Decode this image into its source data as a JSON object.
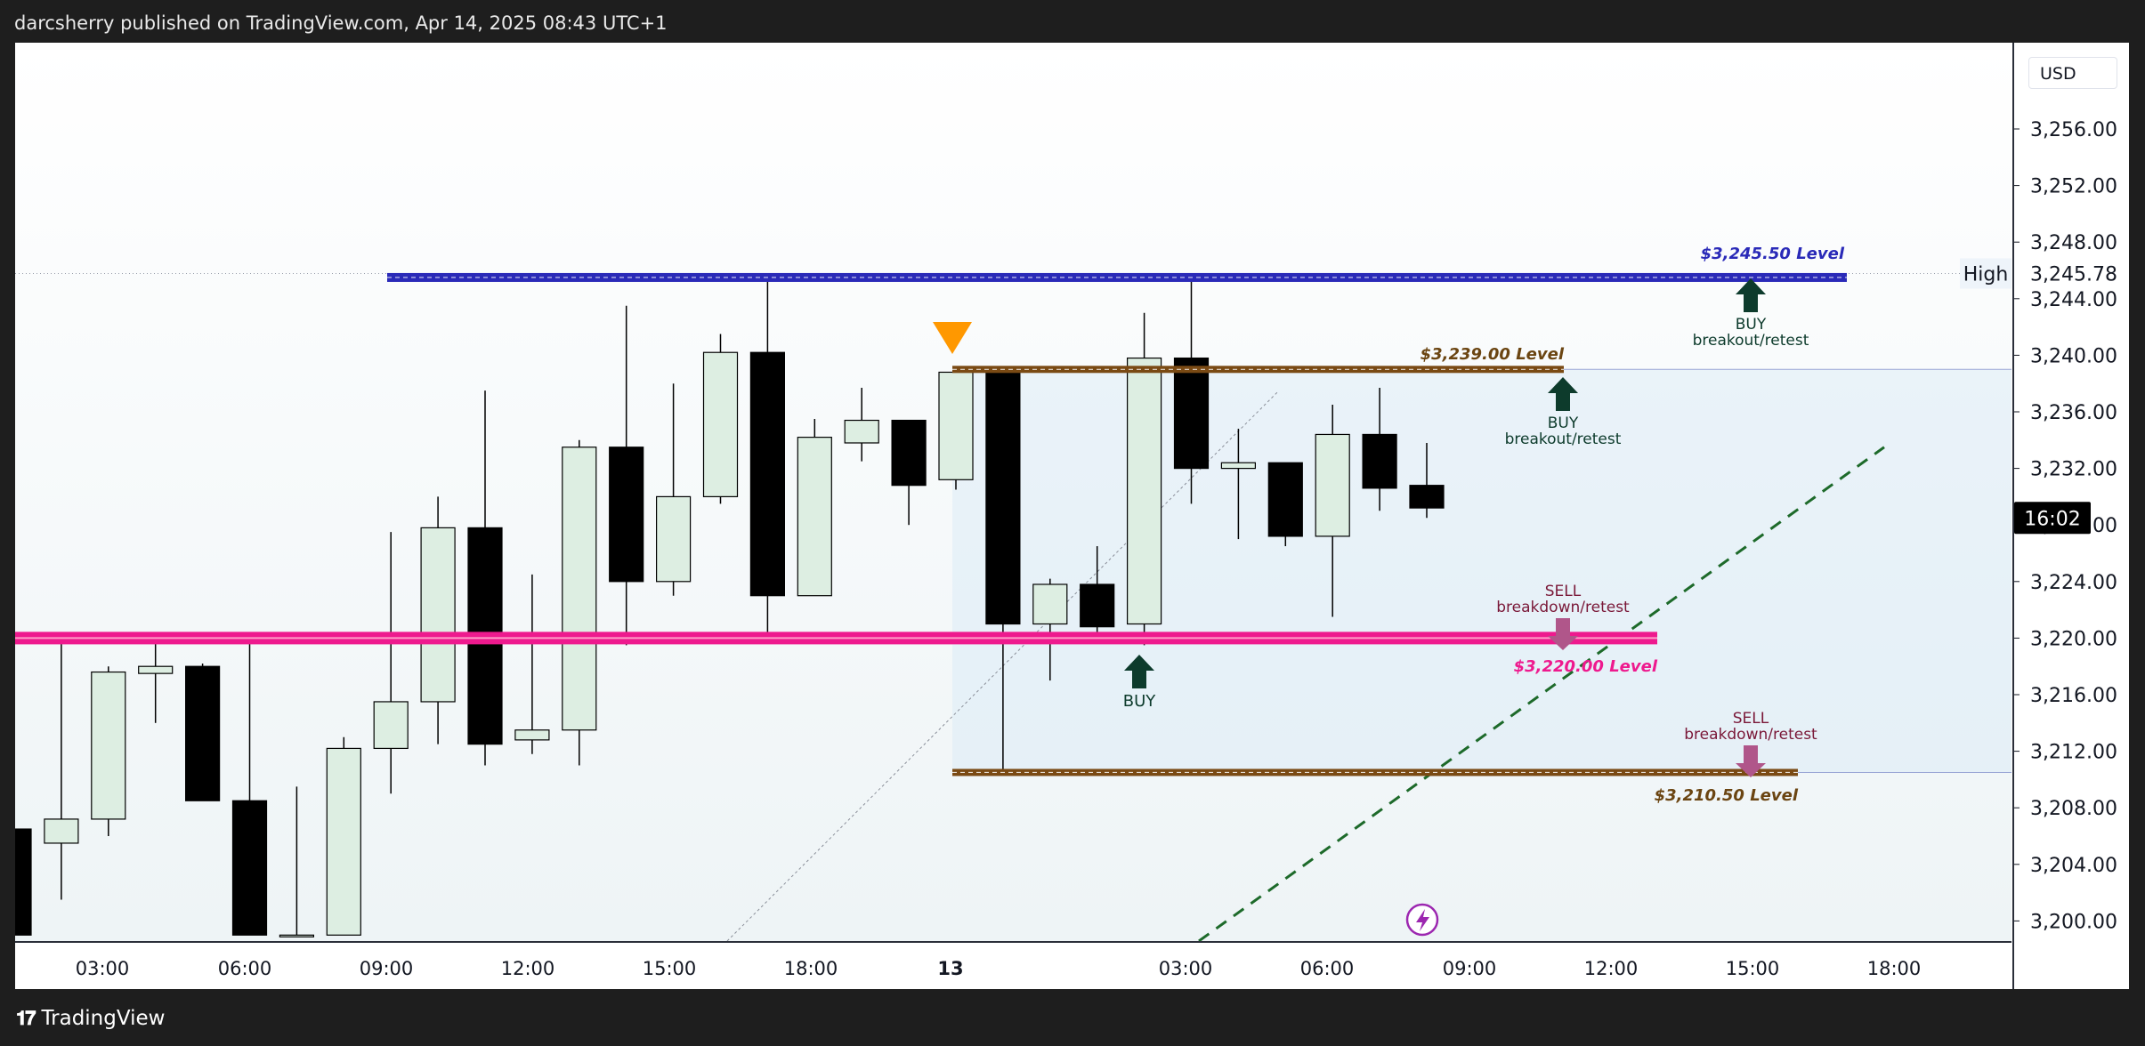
{
  "header": {
    "published": "darcsherry published on TradingView.com, Apr 14, 2025 08:43 UTC+1"
  },
  "footer": {
    "brand": "TradingView"
  },
  "axis": {
    "currency": "USD",
    "price_ticks": [
      "3,256.00",
      "3,252.00",
      "3,248.00",
      "3,244.00",
      "3,240.00",
      "3,236.00",
      "3,232.00",
      "3,228.00",
      "3,224.00",
      "3,220.00",
      "3,216.00",
      "3,212.00",
      "3,208.00",
      "3,204.00",
      "3,200.00"
    ],
    "high_label": "High",
    "high_value": "3,245.78",
    "countdown": "16:02",
    "time_ticks": [
      "03:00",
      "06:00",
      "09:00",
      "12:00",
      "15:00",
      "18:00",
      "13",
      "03:00",
      "06:00",
      "09:00",
      "12:00",
      "15:00",
      "18:00"
    ]
  },
  "annotations": {
    "level_3245": "$3,245.50 Level",
    "level_3239": "$3,239.00 Level",
    "level_3220": "$3,220.00 Level",
    "level_3210": "$3,210.50 Level",
    "buy": "BUY",
    "sell": "SELL",
    "breakout_retest": "breakout/retest",
    "breakdown_retest": "breakdown/retest"
  },
  "colors": {
    "up_body": "#ddeee2",
    "down_body": "#000000",
    "level_blue": "#2a2ab8",
    "level_pink": "#ee1a8e",
    "level_brown": "#7a4a14",
    "buy_arrow": "#0d3b2c",
    "sell_arrow": "#b0568a",
    "trend_green": "#1d6a2a",
    "triangle": "#ff9800"
  },
  "chart_data": {
    "type": "candlestick",
    "title": "",
    "ylim": [
      3199,
      3260
    ],
    "x_ticks": [
      "03:00",
      "06:00",
      "09:00",
      "12:00",
      "15:00",
      "18:00",
      "13",
      "03:00",
      "06:00",
      "09:00",
      "12:00",
      "15:00",
      "18:00"
    ],
    "candles": [
      {
        "x": 0,
        "o": 3206.5,
        "h": 3208.0,
        "l": 3199.0,
        "c": 3199.0
      },
      {
        "x": 1,
        "o": 3205.5,
        "h": 3220.0,
        "l": 3201.5,
        "c": 3207.2
      },
      {
        "x": 2,
        "o": 3207.2,
        "h": 3218.0,
        "l": 3206.0,
        "c": 3217.6
      },
      {
        "x": 3,
        "o": 3217.5,
        "h": 3220.0,
        "l": 3214.0,
        "c": 3218.0
      },
      {
        "x": 4,
        "o": 3218.0,
        "h": 3218.2,
        "l": 3208.5,
        "c": 3208.5
      },
      {
        "x": 5,
        "o": 3208.5,
        "h": 3220.0,
        "l": 3199.0,
        "c": 3199.0
      },
      {
        "x": 6,
        "o": 3199.0,
        "h": 3209.5,
        "l": 3199.0,
        "c": 3199.0
      },
      {
        "x": 7,
        "o": 3199.0,
        "h": 3213.0,
        "l": 3199.0,
        "c": 3212.2
      },
      {
        "x": 8,
        "o": 3212.2,
        "h": 3227.5,
        "l": 3209.0,
        "c": 3215.5
      },
      {
        "x": 9,
        "o": 3215.5,
        "h": 3230.0,
        "l": 3212.5,
        "c": 3227.8
      },
      {
        "x": 10,
        "o": 3227.8,
        "h": 3237.5,
        "l": 3211.0,
        "c": 3212.5
      },
      {
        "x": 11,
        "o": 3212.8,
        "h": 3224.5,
        "l": 3211.8,
        "c": 3213.5
      },
      {
        "x": 12,
        "o": 3213.5,
        "h": 3234.0,
        "l": 3211.0,
        "c": 3233.5
      },
      {
        "x": 13,
        "o": 3233.5,
        "h": 3243.5,
        "l": 3219.5,
        "c": 3224.0
      },
      {
        "x": 14,
        "o": 3224.0,
        "h": 3238.0,
        "l": 3223.0,
        "c": 3230.0
      },
      {
        "x": 15,
        "o": 3230.0,
        "h": 3241.5,
        "l": 3229.5,
        "c": 3240.2
      },
      {
        "x": 16,
        "o": 3240.2,
        "h": 3245.5,
        "l": 3220.0,
        "c": 3223.0
      },
      {
        "x": 17,
        "o": 3223.0,
        "h": 3235.5,
        "l": 3223.0,
        "c": 3234.2
      },
      {
        "x": 18,
        "o": 3233.8,
        "h": 3237.7,
        "l": 3232.5,
        "c": 3235.4
      },
      {
        "x": 19,
        "o": 3235.4,
        "h": 3235.4,
        "l": 3228.0,
        "c": 3230.8
      },
      {
        "x": 20,
        "o": 3231.2,
        "h": 3238.8,
        "l": 3230.5,
        "c": 3238.8
      },
      {
        "x": 21,
        "o": 3238.8,
        "h": 3238.8,
        "l": 3210.5,
        "c": 3221.0
      },
      {
        "x": 22,
        "o": 3221.0,
        "h": 3224.2,
        "l": 3217.0,
        "c": 3223.8
      },
      {
        "x": 23,
        "o": 3223.8,
        "h": 3226.5,
        "l": 3220.0,
        "c": 3220.8
      },
      {
        "x": 24,
        "o": 3221.0,
        "h": 3243.0,
        "l": 3219.5,
        "c": 3239.8
      },
      {
        "x": 25,
        "o": 3239.8,
        "h": 3245.8,
        "l": 3229.5,
        "c": 3232.0
      },
      {
        "x": 26,
        "o": 3232.0,
        "h": 3234.8,
        "l": 3227.0,
        "c": 3232.4
      },
      {
        "x": 27,
        "o": 3232.4,
        "h": 3232.4,
        "l": 3226.5,
        "c": 3227.2
      },
      {
        "x": 28,
        "o": 3227.2,
        "h": 3236.5,
        "l": 3221.5,
        "c": 3234.4
      },
      {
        "x": 29,
        "o": 3234.4,
        "h": 3237.7,
        "l": 3229.0,
        "c": 3230.6
      },
      {
        "x": 30,
        "o": 3230.8,
        "h": 3233.8,
        "l": 3228.5,
        "c": 3229.2
      }
    ],
    "levels": [
      {
        "price": 3245.5,
        "label": "$3,245.50 Level"
      },
      {
        "price": 3239.0,
        "label": "$3,239.00 Level"
      },
      {
        "price": 3220.0,
        "label": "$3,220.00 Level"
      },
      {
        "price": 3210.5,
        "label": "$3,210.50 Level"
      }
    ]
  }
}
